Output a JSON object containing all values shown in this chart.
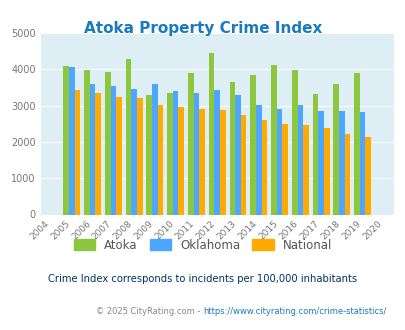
{
  "title": "Atoka Property Crime Index",
  "years": [
    2004,
    2005,
    2006,
    2007,
    2008,
    2009,
    2010,
    2011,
    2012,
    2013,
    2014,
    2015,
    2016,
    2017,
    2018,
    2019,
    2020
  ],
  "atoka": [
    0,
    4100,
    3970,
    3930,
    4270,
    3280,
    3360,
    3900,
    4450,
    3640,
    3840,
    4130,
    3980,
    3320,
    3590,
    3900,
    0
  ],
  "oklahoma": [
    0,
    4050,
    3600,
    3540,
    3450,
    3590,
    3400,
    3360,
    3420,
    3290,
    3010,
    2920,
    3010,
    2860,
    2860,
    2830,
    0
  ],
  "national": [
    0,
    3440,
    3340,
    3240,
    3210,
    3030,
    2950,
    2910,
    2890,
    2730,
    2600,
    2490,
    2460,
    2370,
    2210,
    2130,
    0
  ],
  "bar_width": 0.27,
  "ylim": [
    0,
    5000
  ],
  "yticks": [
    0,
    1000,
    2000,
    3000,
    4000,
    5000
  ],
  "color_atoka": "#8dc63f",
  "color_oklahoma": "#4da6ff",
  "color_national": "#ffaa00",
  "bg_color": "#ddeef5",
  "title_color": "#1a7abf",
  "subtitle_color": "#003366",
  "footer_color": "#888888",
  "url_color": "#1a7abf",
  "subtitle": "Crime Index corresponds to incidents per 100,000 inhabitants",
  "footer_left": "© 2025 CityRating.com - ",
  "footer_right": "https://www.cityrating.com/crime-statistics/",
  "legend_labels": [
    "Atoka",
    "Oklahoma",
    "National"
  ]
}
